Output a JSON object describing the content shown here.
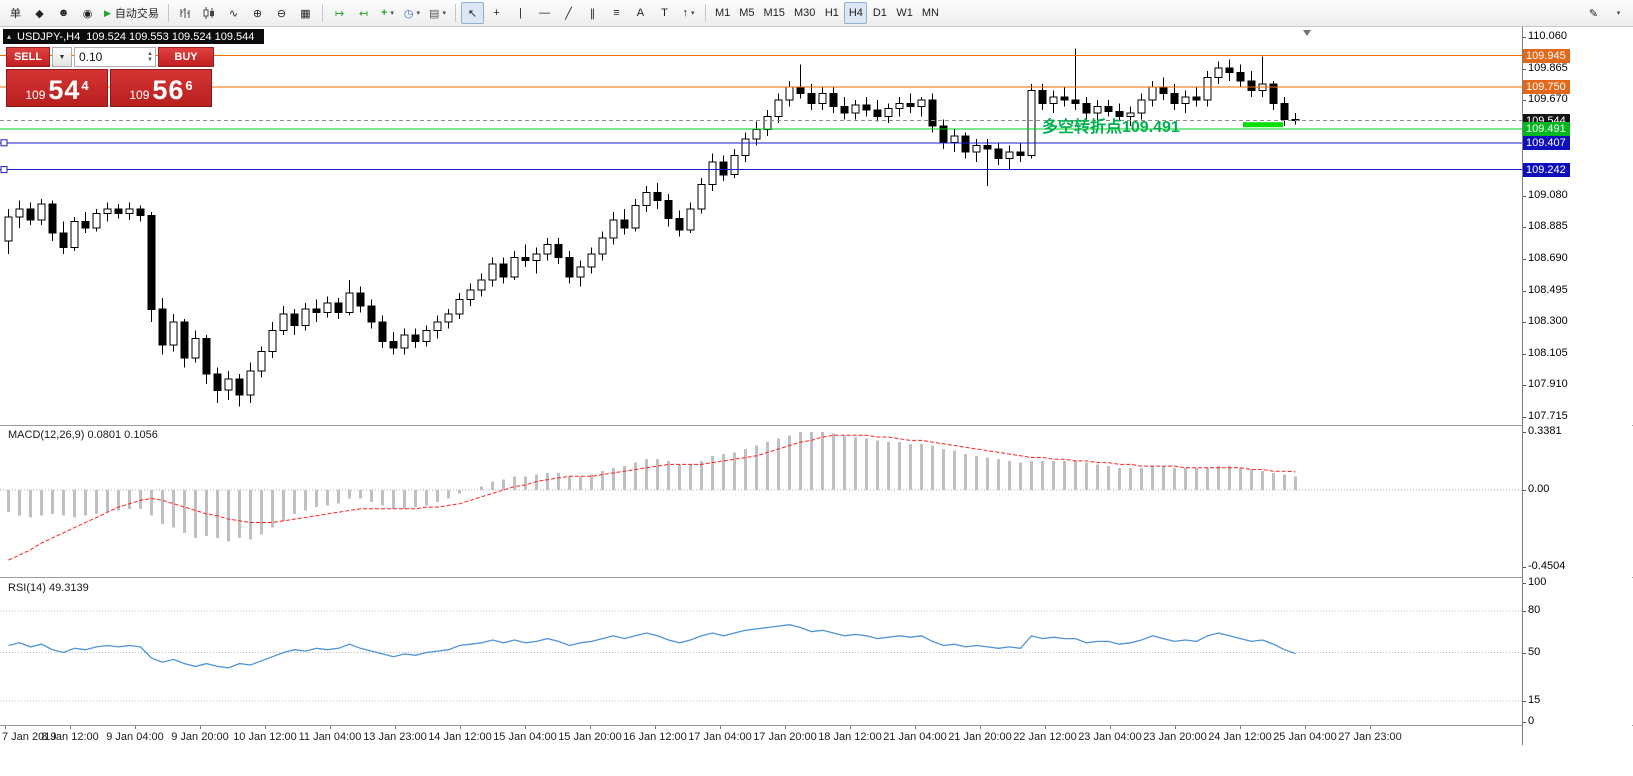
{
  "toolbar": {
    "new_order_label": "单",
    "autotrading_label": "自动交易",
    "timeframes": [
      "M1",
      "M5",
      "M15",
      "M30",
      "H1",
      "H4",
      "D1",
      "W1",
      "MN"
    ],
    "active_timeframe": "H4"
  },
  "icons": {
    "diamond": "◆",
    "person": "☻",
    "info": "◉",
    "play": "▶",
    "line_chart": "∿",
    "zoom_in": "⊕",
    "zoom_out": "⊖",
    "tiles": "▦",
    "autoscroll": "↦",
    "shift": "↤",
    "indicators_plus": "+",
    "clock": "◷",
    "template": "▤",
    "cursor": "↖",
    "crosshair": "+",
    "vline": "|",
    "hline": "—",
    "trendline": "╱",
    "channel": "∥",
    "fibo": "≡",
    "text_a": "A",
    "label_t": "T",
    "arrow": "↑",
    "pencil": "✎",
    "dropdown_small": "▾",
    "spin_up": "▲",
    "spin_down": "▼",
    "collapse": "▴"
  },
  "chart": {
    "title": "USDJPY-,H4",
    "ohlc": "109.524 109.553 109.524 109.544"
  },
  "one_click": {
    "sell_label": "SELL",
    "buy_label": "BUY",
    "volume": "0.10",
    "sell_prefix": "109",
    "sell_big": "54",
    "sell_sup": "4",
    "buy_prefix": "109",
    "buy_big": "56",
    "buy_sup": "6"
  },
  "chart_data": {
    "type": "candlestick",
    "symbol": "USDJPY-",
    "timeframe": "H4",
    "price_range": [
      107.715,
      110.06
    ],
    "price_ticks": [
      110.06,
      109.865,
      109.67,
      109.08,
      108.885,
      108.69,
      108.495,
      108.3,
      108.105,
      107.91,
      107.715
    ],
    "levels": [
      {
        "price": 109.945,
        "color": "#ef6c00",
        "badge": "#e2691c"
      },
      {
        "price": 109.75,
        "color": "#ef6c00",
        "badge": "#e2691c"
      },
      {
        "price": 109.544,
        "color": "#8c8c8c",
        "badge": "#141414",
        "dash": true,
        "current": true
      },
      {
        "price": 109.491,
        "color": "#00ce1b",
        "badge": "#00b81e"
      },
      {
        "price": 109.407,
        "color": "#1c1ccd",
        "badge": "#0e0ebc",
        "handle": true
      },
      {
        "price": 109.242,
        "color": "#1c1ccd",
        "badge": "#0e0ebc",
        "handle": true
      }
    ],
    "annotation": {
      "text": "多空转折点109.491",
      "color": "#00b050"
    },
    "candles": [
      [
        108.8,
        109.0,
        108.72,
        108.95
      ],
      [
        108.95,
        109.05,
        108.88,
        109.0
      ],
      [
        109.0,
        109.04,
        108.9,
        108.93
      ],
      [
        108.93,
        109.06,
        108.9,
        109.03
      ],
      [
        109.03,
        109.05,
        108.8,
        108.85
      ],
      [
        108.85,
        108.92,
        108.72,
        108.76
      ],
      [
        108.76,
        108.95,
        108.74,
        108.92
      ],
      [
        108.92,
        108.98,
        108.85,
        108.88
      ],
      [
        108.88,
        109.0,
        108.86,
        108.97
      ],
      [
        108.97,
        109.04,
        108.92,
        109.0
      ],
      [
        109.0,
        109.03,
        108.94,
        108.97
      ],
      [
        108.97,
        109.04,
        108.93,
        109.0
      ],
      [
        109.0,
        109.02,
        108.92,
        108.96
      ],
      [
        108.96,
        108.98,
        108.3,
        108.38
      ],
      [
        108.38,
        108.45,
        108.1,
        108.16
      ],
      [
        108.16,
        108.35,
        108.12,
        108.3
      ],
      [
        108.3,
        108.32,
        108.02,
        108.08
      ],
      [
        108.08,
        108.25,
        108.05,
        108.2
      ],
      [
        108.2,
        108.22,
        107.92,
        107.98
      ],
      [
        107.98,
        108.02,
        107.8,
        107.88
      ],
      [
        107.88,
        108.0,
        107.82,
        107.95
      ],
      [
        107.95,
        107.98,
        107.78,
        107.85
      ],
      [
        107.85,
        108.05,
        107.8,
        108.0
      ],
      [
        108.0,
        108.15,
        107.96,
        108.12
      ],
      [
        108.12,
        108.3,
        108.08,
        108.25
      ],
      [
        108.25,
        108.4,
        108.22,
        108.35
      ],
      [
        108.35,
        108.38,
        108.22,
        108.28
      ],
      [
        108.28,
        108.42,
        108.25,
        108.38
      ],
      [
        108.38,
        108.44,
        108.3,
        108.36
      ],
      [
        108.36,
        108.46,
        108.33,
        108.42
      ],
      [
        108.42,
        108.45,
        108.32,
        108.36
      ],
      [
        108.36,
        108.56,
        108.34,
        108.48
      ],
      [
        108.48,
        108.52,
        108.36,
        108.4
      ],
      [
        108.4,
        108.44,
        108.26,
        108.3
      ],
      [
        108.3,
        108.34,
        108.14,
        108.18
      ],
      [
        108.18,
        108.24,
        108.1,
        108.14
      ],
      [
        108.14,
        108.26,
        108.1,
        108.22
      ],
      [
        108.22,
        108.26,
        108.14,
        108.18
      ],
      [
        108.18,
        108.28,
        108.15,
        108.25
      ],
      [
        108.25,
        108.34,
        108.2,
        108.3
      ],
      [
        108.3,
        108.38,
        108.26,
        108.35
      ],
      [
        108.35,
        108.48,
        108.32,
        108.44
      ],
      [
        108.44,
        108.54,
        108.4,
        108.5
      ],
      [
        108.5,
        108.6,
        108.46,
        108.56
      ],
      [
        108.56,
        108.7,
        108.52,
        108.66
      ],
      [
        108.66,
        108.7,
        108.54,
        108.58
      ],
      [
        108.58,
        108.74,
        108.56,
        108.7
      ],
      [
        108.7,
        108.78,
        108.64,
        108.68
      ],
      [
        108.68,
        108.76,
        108.6,
        108.72
      ],
      [
        108.72,
        108.82,
        108.68,
        108.78
      ],
      [
        108.78,
        108.82,
        108.66,
        108.7
      ],
      [
        108.7,
        108.74,
        108.54,
        108.58
      ],
      [
        108.58,
        108.68,
        108.52,
        108.64
      ],
      [
        108.64,
        108.76,
        108.6,
        108.72
      ],
      [
        108.72,
        108.86,
        108.68,
        108.82
      ],
      [
        108.82,
        108.98,
        108.78,
        108.93
      ],
      [
        108.93,
        109.0,
        108.84,
        108.88
      ],
      [
        108.88,
        109.06,
        108.86,
        109.02
      ],
      [
        109.02,
        109.14,
        108.98,
        109.1
      ],
      [
        109.1,
        109.16,
        109.0,
        109.05
      ],
      [
        109.05,
        109.09,
        108.89,
        108.94
      ],
      [
        108.94,
        108.99,
        108.83,
        108.87
      ],
      [
        108.87,
        109.04,
        108.85,
        109.0
      ],
      [
        109.0,
        109.19,
        108.97,
        109.15
      ],
      [
        109.15,
        109.34,
        109.11,
        109.29
      ],
      [
        109.29,
        109.33,
        109.17,
        109.21
      ],
      [
        109.21,
        109.37,
        109.19,
        109.33
      ],
      [
        109.33,
        109.47,
        109.29,
        109.43
      ],
      [
        109.43,
        109.54,
        109.39,
        109.49
      ],
      [
        109.49,
        109.61,
        109.45,
        109.57
      ],
      [
        109.57,
        109.71,
        109.53,
        109.67
      ],
      [
        109.67,
        109.79,
        109.63,
        109.75
      ],
      [
        109.75,
        109.89,
        109.68,
        109.71
      ],
      [
        109.71,
        109.77,
        109.61,
        109.65
      ],
      [
        109.65,
        109.75,
        109.61,
        109.71
      ],
      [
        109.71,
        109.75,
        109.59,
        109.63
      ],
      [
        109.63,
        109.69,
        109.55,
        109.59
      ],
      [
        109.59,
        109.67,
        109.55,
        109.64
      ],
      [
        109.64,
        109.69,
        109.57,
        109.61
      ],
      [
        109.61,
        109.67,
        109.54,
        109.57
      ],
      [
        109.57,
        109.65,
        109.53,
        109.62
      ],
      [
        109.62,
        109.69,
        109.57,
        109.65
      ],
      [
        109.65,
        109.71,
        109.59,
        109.63
      ],
      [
        109.63,
        109.69,
        109.57,
        109.67
      ],
      [
        109.67,
        109.71,
        109.47,
        109.51
      ],
      [
        109.51,
        109.55,
        109.37,
        109.41
      ],
      [
        109.41,
        109.49,
        109.35,
        109.45
      ],
      [
        109.45,
        109.47,
        109.31,
        109.35
      ],
      [
        109.35,
        109.43,
        109.29,
        109.39
      ],
      [
        109.39,
        109.43,
        109.14,
        109.37
      ],
      [
        109.37,
        109.41,
        109.27,
        109.31
      ],
      [
        109.31,
        109.39,
        109.24,
        109.35
      ],
      [
        109.35,
        109.41,
        109.29,
        109.33
      ],
      [
        109.33,
        109.77,
        109.31,
        109.73
      ],
      [
        109.73,
        109.77,
        109.61,
        109.65
      ],
      [
        109.65,
        109.73,
        109.59,
        109.69
      ],
      [
        109.69,
        109.75,
        109.63,
        109.67
      ],
      [
        109.67,
        109.99,
        109.61,
        109.65
      ],
      [
        109.65,
        109.69,
        109.55,
        109.59
      ],
      [
        109.59,
        109.67,
        109.54,
        109.63
      ],
      [
        109.63,
        109.67,
        109.57,
        109.6
      ],
      [
        109.6,
        109.65,
        109.54,
        109.57
      ],
      [
        109.57,
        109.63,
        109.51,
        109.59
      ],
      [
        109.59,
        109.71,
        109.55,
        109.67
      ],
      [
        109.67,
        109.79,
        109.63,
        109.75
      ],
      [
        109.75,
        109.81,
        109.67,
        109.71
      ],
      [
        109.71,
        109.77,
        109.61,
        109.65
      ],
      [
        109.65,
        109.73,
        109.59,
        109.69
      ],
      [
        109.69,
        109.75,
        109.63,
        109.67
      ],
      [
        109.67,
        109.85,
        109.63,
        109.81
      ],
      [
        109.81,
        109.91,
        109.77,
        109.87
      ],
      [
        109.87,
        109.92,
        109.79,
        109.84
      ],
      [
        109.84,
        109.89,
        109.75,
        109.79
      ],
      [
        109.79,
        109.85,
        109.69,
        109.73
      ],
      [
        109.73,
        109.94,
        109.69,
        109.77
      ],
      [
        109.77,
        109.79,
        109.61,
        109.65
      ],
      [
        109.65,
        109.69,
        109.51,
        109.55
      ],
      [
        109.55,
        109.59,
        109.52,
        109.544
      ]
    ],
    "time_labels": [
      "7 Jan 2019",
      "8 Jan 12:00",
      "9 Jan 04:00",
      "9 Jan 20:00",
      "10 Jan 12:00",
      "11 Jan 04:00",
      "13 Jan 23:00",
      "14 Jan 12:00",
      "15 Jan 04:00",
      "15 Jan 20:00",
      "16 Jan 12:00",
      "17 Jan 04:00",
      "17 Jan 20:00",
      "18 Jan 12:00",
      "21 Jan 04:00",
      "21 Jan 20:00",
      "22 Jan 12:00",
      "23 Jan 04:00",
      "23 Jan 20:00",
      "24 Jan 12:00",
      "25 Jan 04:00",
      "27 Jan 23:00"
    ],
    "indicators": {
      "macd": {
        "label": "MACD(12,26,9) 0.0801 0.1056",
        "current_main": 0.0801,
        "current_signal": 0.1056,
        "scale": [
          [
            0.3381,
            "0.3381"
          ],
          [
            0,
            "0.00"
          ],
          [
            -0.4504,
            "-0.4504"
          ]
        ],
        "histogram": [
          -0.13,
          -0.15,
          -0.16,
          -0.15,
          -0.14,
          -0.15,
          -0.16,
          -0.15,
          -0.14,
          -0.13,
          -0.12,
          -0.11,
          -0.11,
          -0.15,
          -0.2,
          -0.22,
          -0.25,
          -0.28,
          -0.27,
          -0.28,
          -0.3,
          -0.28,
          -0.29,
          -0.26,
          -0.22,
          -0.18,
          -0.14,
          -0.12,
          -0.1,
          -0.09,
          -0.08,
          -0.05,
          -0.05,
          -0.07,
          -0.09,
          -0.11,
          -0.11,
          -0.1,
          -0.09,
          -0.07,
          -0.05,
          -0.02,
          0.0,
          0.02,
          0.05,
          0.06,
          0.08,
          0.08,
          0.09,
          0.1,
          0.1,
          0.08,
          0.08,
          0.09,
          0.11,
          0.13,
          0.14,
          0.16,
          0.18,
          0.18,
          0.17,
          0.15,
          0.15,
          0.17,
          0.2,
          0.21,
          0.22,
          0.24,
          0.26,
          0.28,
          0.3,
          0.32,
          0.34,
          0.34,
          0.34,
          0.33,
          0.32,
          0.31,
          0.3,
          0.29,
          0.28,
          0.28,
          0.27,
          0.27,
          0.26,
          0.24,
          0.23,
          0.21,
          0.2,
          0.19,
          0.18,
          0.17,
          0.16,
          0.17,
          0.17,
          0.17,
          0.17,
          0.17,
          0.16,
          0.15,
          0.14,
          0.13,
          0.13,
          0.13,
          0.14,
          0.14,
          0.13,
          0.13,
          0.13,
          0.13,
          0.14,
          0.14,
          0.13,
          0.12,
          0.11,
          0.1,
          0.09,
          0.0801
        ],
        "signal": [
          -0.41,
          -0.38,
          -0.35,
          -0.31,
          -0.28,
          -0.25,
          -0.22,
          -0.19,
          -0.16,
          -0.13,
          -0.1,
          -0.08,
          -0.06,
          -0.05,
          -0.06,
          -0.08,
          -0.1,
          -0.12,
          -0.14,
          -0.15,
          -0.17,
          -0.18,
          -0.19,
          -0.19,
          -0.19,
          -0.18,
          -0.17,
          -0.16,
          -0.15,
          -0.14,
          -0.13,
          -0.12,
          -0.11,
          -0.11,
          -0.11,
          -0.11,
          -0.11,
          -0.11,
          -0.1,
          -0.1,
          -0.09,
          -0.08,
          -0.06,
          -0.04,
          -0.02,
          0.0,
          0.02,
          0.03,
          0.05,
          0.06,
          0.07,
          0.08,
          0.08,
          0.08,
          0.09,
          0.1,
          0.11,
          0.12,
          0.13,
          0.14,
          0.15,
          0.15,
          0.15,
          0.15,
          0.16,
          0.17,
          0.18,
          0.19,
          0.2,
          0.22,
          0.24,
          0.26,
          0.28,
          0.29,
          0.31,
          0.32,
          0.32,
          0.32,
          0.32,
          0.31,
          0.31,
          0.3,
          0.29,
          0.29,
          0.28,
          0.27,
          0.26,
          0.25,
          0.24,
          0.23,
          0.22,
          0.21,
          0.2,
          0.19,
          0.19,
          0.18,
          0.18,
          0.17,
          0.17,
          0.16,
          0.16,
          0.15,
          0.15,
          0.14,
          0.14,
          0.14,
          0.14,
          0.13,
          0.13,
          0.13,
          0.13,
          0.13,
          0.13,
          0.12,
          0.12,
          0.11,
          0.11,
          0.1056
        ]
      },
      "rsi": {
        "label": "RSI(14) 49.3139",
        "current": 49.3139,
        "scale": [
          100,
          80,
          50,
          15,
          0
        ],
        "levels": [
          80,
          50,
          15
        ],
        "values": [
          55,
          57,
          54,
          56,
          52,
          50,
          53,
          52,
          54,
          55,
          54,
          55,
          54,
          46,
          43,
          45,
          42,
          40,
          42,
          40,
          39,
          42,
          41,
          44,
          47,
          50,
          52,
          51,
          53,
          52,
          53,
          56,
          53,
          51,
          49,
          47,
          49,
          48,
          50,
          51,
          52,
          55,
          56,
          57,
          59,
          57,
          59,
          57,
          58,
          60,
          58,
          55,
          57,
          58,
          60,
          62,
          60,
          62,
          64,
          62,
          59,
          57,
          59,
          62,
          64,
          62,
          64,
          66,
          67,
          68,
          69,
          70,
          68,
          65,
          66,
          64,
          62,
          63,
          62,
          60,
          61,
          62,
          61,
          62,
          58,
          55,
          56,
          54,
          55,
          54,
          53,
          54,
          53,
          62,
          60,
          61,
          60,
          60,
          57,
          58,
          58,
          56,
          57,
          59,
          62,
          60,
          58,
          59,
          58,
          62,
          64,
          62,
          60,
          58,
          59,
          56,
          52,
          49.31
        ]
      }
    }
  }
}
